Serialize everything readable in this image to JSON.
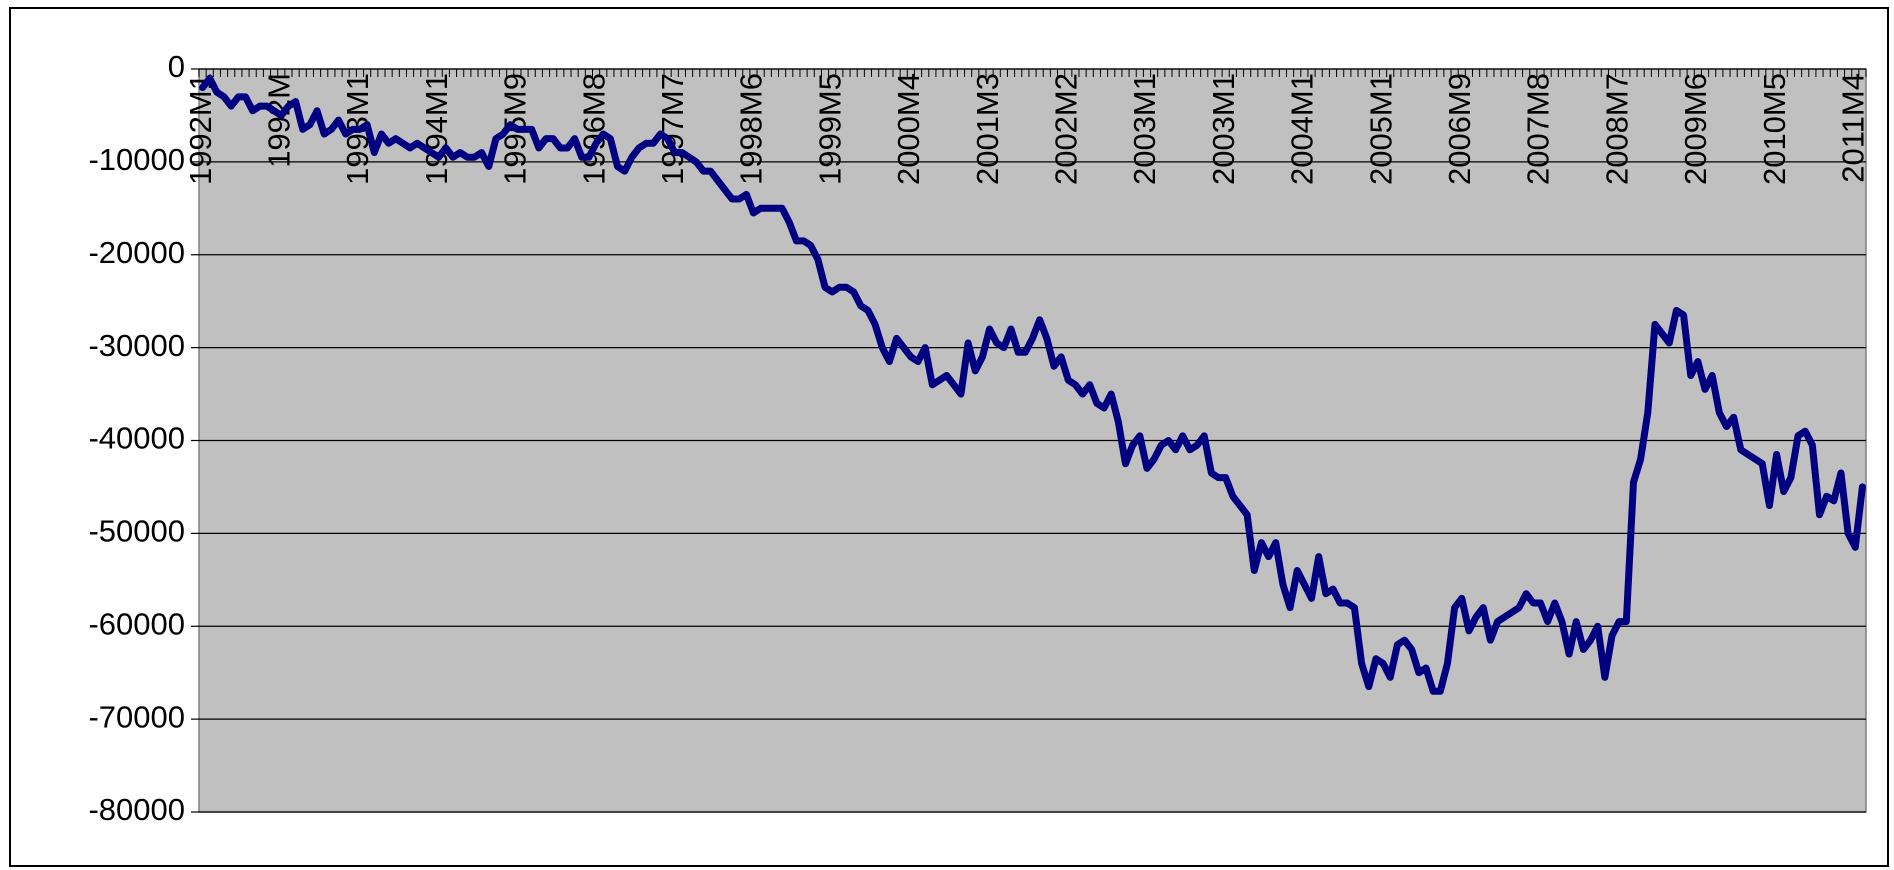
{
  "chart_data": {
    "type": "line",
    "categories": [
      "1992M1",
      null,
      null,
      null,
      null,
      null,
      null,
      null,
      null,
      null,
      null,
      "1992M",
      null,
      null,
      null,
      null,
      null,
      null,
      null,
      null,
      null,
      null,
      "1993M1",
      null,
      null,
      null,
      null,
      null,
      null,
      null,
      null,
      null,
      null,
      "1994M1",
      null,
      null,
      null,
      null,
      null,
      null,
      null,
      null,
      null,
      null,
      "1995M9",
      null,
      null,
      null,
      null,
      null,
      null,
      null,
      null,
      null,
      null,
      "1996M8",
      null,
      null,
      null,
      null,
      null,
      null,
      null,
      null,
      null,
      null,
      "1997M7",
      null,
      null,
      null,
      null,
      null,
      null,
      null,
      null,
      null,
      null,
      "1998M6",
      null,
      null,
      null,
      null,
      null,
      null,
      null,
      null,
      null,
      null,
      "1999M5",
      null,
      null,
      null,
      null,
      null,
      null,
      null,
      null,
      null,
      null,
      "2000M4",
      null,
      null,
      null,
      null,
      null,
      null,
      null,
      null,
      null,
      null,
      "2001M3",
      null,
      null,
      null,
      null,
      null,
      null,
      null,
      null,
      null,
      null,
      "2002M2",
      null,
      null,
      null,
      null,
      null,
      null,
      null,
      null,
      null,
      null,
      "2003M1",
      null,
      null,
      null,
      null,
      null,
      null,
      null,
      null,
      null,
      null,
      "2003M1",
      null,
      null,
      null,
      null,
      null,
      null,
      null,
      null,
      null,
      null,
      "2004M1",
      null,
      null,
      null,
      null,
      null,
      null,
      null,
      null,
      null,
      null,
      "2005M1",
      null,
      null,
      null,
      null,
      null,
      null,
      null,
      null,
      null,
      null,
      "2006M9",
      null,
      null,
      null,
      null,
      null,
      null,
      null,
      null,
      null,
      null,
      "2007M8",
      null,
      null,
      null,
      null,
      null,
      null,
      null,
      null,
      null,
      null,
      "2008M7",
      null,
      null,
      null,
      null,
      null,
      null,
      null,
      null,
      null,
      null,
      "2009M6",
      null,
      null,
      null,
      null,
      null,
      null,
      null,
      null,
      null,
      null,
      "2010M5",
      null,
      null,
      null,
      null,
      null,
      null,
      null,
      null,
      null,
      null,
      "2011M4",
      null
    ],
    "values": [
      -2000,
      -1000,
      -2500,
      -3000,
      -4000,
      -3000,
      -3000,
      -4500,
      -4000,
      -4000,
      -4500,
      -5000,
      -4000,
      -3500,
      -6500,
      -6000,
      -4500,
      -7000,
      -6500,
      -5500,
      -7000,
      -6500,
      -6500,
      -6000,
      -9000,
      -7000,
      -8000,
      -7500,
      -8000,
      -8500,
      -8000,
      -8500,
      -9000,
      -9500,
      -8500,
      -9500,
      -9000,
      -9500,
      -9500,
      -9000,
      -10500,
      -7500,
      -7000,
      -6000,
      -6500,
      -6500,
      -6500,
      -8500,
      -7500,
      -7500,
      -8500,
      -8500,
      -7500,
      -9500,
      -9500,
      -8000,
      -7000,
      -7500,
      -10500,
      -11000,
      -9500,
      -8500,
      -8000,
      -8000,
      -7000,
      -7500,
      -9000,
      -9000,
      -9500,
      -10000,
      -11000,
      -11000,
      -12000,
      -13000,
      -14000,
      -14000,
      -13500,
      -15500,
      -15000,
      -15000,
      -15000,
      -15000,
      -16500,
      -18500,
      -18500,
      -19000,
      -20500,
      -23500,
      -24000,
      -23500,
      -23500,
      -24000,
      -25500,
      -26000,
      -27500,
      -30000,
      -31500,
      -29000,
      -30000,
      -31000,
      -31500,
      -30000,
      -34000,
      -33500,
      -33000,
      -34000,
      -35000,
      -29500,
      -32500,
      -31000,
      -28000,
      -29500,
      -30000,
      -28000,
      -30500,
      -30500,
      -29000,
      -27000,
      -29000,
      -32000,
      -31000,
      -33500,
      -34000,
      -35000,
      -34000,
      -36000,
      -36500,
      -35000,
      -38000,
      -42500,
      -40500,
      -39500,
      -43000,
      -42000,
      -40500,
      -40000,
      -41000,
      -39500,
      -41000,
      -40500,
      -39500,
      -43500,
      -44000,
      -44000,
      -46000,
      -47000,
      -48000,
      -54000,
      -51000,
      -52500,
      -51000,
      -55500,
      -58000,
      -54000,
      -55500,
      -57000,
      -52500,
      -56500,
      -56000,
      -57500,
      -57500,
      -58000,
      -64000,
      -66500,
      -63500,
      -64000,
      -65500,
      -62000,
      -61500,
      -62500,
      -65000,
      -64500,
      -67000,
      -67000,
      -64000,
      -58000,
      -57000,
      -60500,
      -59000,
      -58000,
      -61500,
      -59500,
      -59000,
      -58500,
      -58000,
      -56500,
      -57500,
      -57500,
      -59500,
      -57500,
      -59500,
      -63000,
      -59500,
      -62500,
      -61500,
      -60000,
      -65500,
      -61000,
      -59500,
      -59500,
      -44500,
      -42000,
      -37000,
      -27500,
      -28500,
      -29500,
      -26000,
      -26500,
      -33000,
      -31500,
      -34500,
      -33000,
      -37000,
      -38500,
      -37500,
      -41000,
      -41500,
      -42000,
      -42500,
      -47000,
      -41500,
      -45500,
      -44000,
      -39500,
      -39000,
      -40500,
      -48000,
      -46000,
      -46500,
      -43500,
      -50000,
      -51500,
      -45000
    ],
    "color": "#000080",
    "ylim": [
      -80000,
      0
    ],
    "yticks": [
      -80000,
      -70000,
      -60000,
      -50000,
      -40000,
      -30000,
      -20000,
      -10000,
      0
    ],
    "grid": true
  }
}
